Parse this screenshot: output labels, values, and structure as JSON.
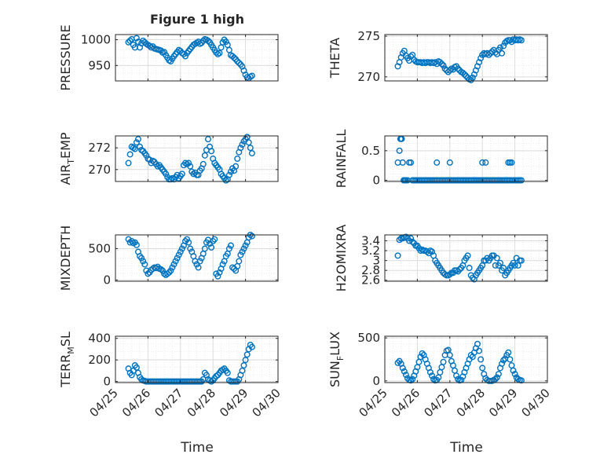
{
  "figure": {
    "title": "Figure 1 high",
    "xlabel": "Time"
  },
  "colors": {
    "marker": "#0072BD",
    "axis": "#262626",
    "grid": "#dcdcdc",
    "minor_grid": "#ebebeb"
  },
  "x_axis": {
    "ticks": [
      0,
      1,
      2,
      3,
      4,
      5
    ],
    "tick_labels": [
      "04/25",
      "04/26",
      "04/27",
      "04/28",
      "04/29",
      "04/30"
    ],
    "xlim": [
      0,
      5
    ],
    "units_note": "days starting 04/25"
  },
  "chart_data": [
    {
      "type": "scatter",
      "ylabel": "PRESSURE",
      "ylim": [
        920,
        1010
      ],
      "yticks": [
        950,
        1000
      ],
      "ytick_labels": [
        "950",
        "1000"
      ],
      "grid": true,
      "x": [
        0.4,
        0.45,
        0.5,
        0.55,
        0.6,
        0.65,
        0.7,
        0.75,
        0.8,
        0.85,
        0.9,
        0.95,
        1.0,
        1.05,
        1.1,
        1.15,
        1.2,
        1.25,
        1.3,
        1.35,
        1.4,
        1.45,
        1.5,
        1.55,
        1.6,
        1.65,
        1.7,
        1.75,
        1.8,
        1.85,
        1.9,
        1.95,
        2.0,
        2.05,
        2.1,
        2.15,
        2.2,
        2.25,
        2.3,
        2.35,
        2.4,
        2.45,
        2.5,
        2.55,
        2.6,
        2.65,
        2.7,
        2.75,
        2.8,
        2.85,
        2.9,
        2.95,
        3.0,
        3.05,
        3.1,
        3.15,
        3.2,
        3.25,
        3.3,
        3.35,
        3.4,
        3.45,
        3.5,
        3.55,
        3.6,
        3.65,
        3.7,
        3.75,
        3.8,
        3.85,
        3.9,
        3.95,
        4.0,
        4.05,
        4.1,
        4.15,
        4.2
      ],
      "y": [
        995,
        998,
        1001,
        990,
        985,
        1003,
        996,
        985,
        993,
        998,
        995,
        992,
        990,
        988,
        985,
        987,
        983,
        982,
        981,
        980,
        979,
        975,
        976,
        970,
        965,
        960,
        958,
        963,
        968,
        972,
        976,
        980,
        978,
        974,
        972,
        968,
        974,
        978,
        982,
        986,
        990,
        992,
        994,
        996,
        992,
        994,
        998,
        1001,
        1000,
        998,
        995,
        990,
        985,
        980,
        975,
        972,
        974,
        985,
        995,
        1000,
        996,
        990,
        980,
        970,
        968,
        965,
        962,
        958,
        955,
        952,
        948,
        940,
        932,
        927,
        925,
        928,
        930
      ]
    },
    {
      "type": "scatter",
      "ylabel": "THETA",
      "ylim": [
        269.5,
        275.2
      ],
      "yticks": [
        270,
        275
      ],
      "ytick_labels": [
        "270",
        "275"
      ],
      "grid": true,
      "x": [
        0.4,
        0.45,
        0.5,
        0.55,
        0.6,
        0.65,
        0.7,
        0.75,
        0.8,
        0.85,
        0.9,
        0.95,
        1.0,
        1.05,
        1.1,
        1.15,
        1.2,
        1.25,
        1.3,
        1.35,
        1.4,
        1.45,
        1.5,
        1.55,
        1.6,
        1.65,
        1.7,
        1.75,
        1.8,
        1.85,
        1.9,
        1.95,
        2.0,
        2.05,
        2.1,
        2.15,
        2.2,
        2.25,
        2.3,
        2.35,
        2.4,
        2.45,
        2.5,
        2.55,
        2.6,
        2.65,
        2.7,
        2.75,
        2.8,
        2.85,
        2.9,
        2.95,
        3.0,
        3.05,
        3.1,
        3.15,
        3.2,
        3.25,
        3.3,
        3.35,
        3.4,
        3.45,
        3.5,
        3.55,
        3.6,
        3.65,
        3.7,
        3.75,
        3.8,
        3.85,
        3.9,
        3.95,
        4.0,
        4.05,
        4.1,
        4.15,
        4.2
      ],
      "y": [
        271.3,
        271.8,
        272.4,
        272.9,
        273.2,
        272.6,
        272.3,
        272.0,
        272.5,
        272.7,
        272.1,
        271.9,
        271.8,
        271.8,
        271.8,
        271.7,
        271.8,
        271.7,
        271.8,
        271.8,
        271.7,
        271.8,
        271.7,
        271.8,
        271.6,
        271.9,
        271.8,
        271.6,
        271.4,
        271.0,
        270.8,
        270.6,
        270.8,
        271.0,
        270.9,
        271.2,
        271.3,
        271.0,
        270.8,
        270.6,
        270.5,
        270.3,
        270.1,
        269.9,
        269.7,
        269.6,
        269.9,
        270.3,
        270.8,
        271.3,
        271.8,
        272.3,
        272.7,
        272.9,
        272.8,
        272.9,
        272.7,
        272.9,
        273.1,
        273.3,
        273.0,
        272.8,
        273.3,
        273.6,
        272.9,
        273.8,
        274.2,
        274.4,
        274.5,
        274.5,
        274.3,
        274.6,
        274.5,
        274.6,
        274.5,
        274.6,
        274.5
      ]
    },
    {
      "type": "scatter",
      "ylabel": "AIR_TEMP",
      "ylim": [
        268.9,
        273.1
      ],
      "yticks": [
        270,
        272
      ],
      "ytick_labels": [
        "270",
        "272"
      ],
      "grid": true,
      "x": [
        0.4,
        0.45,
        0.5,
        0.55,
        0.6,
        0.65,
        0.7,
        0.75,
        0.8,
        0.85,
        0.9,
        0.95,
        1.0,
        1.05,
        1.1,
        1.15,
        1.2,
        1.25,
        1.3,
        1.35,
        1.4,
        1.45,
        1.5,
        1.55,
        1.6,
        1.65,
        1.7,
        1.75,
        1.8,
        1.85,
        1.9,
        1.95,
        2.0,
        2.05,
        2.1,
        2.15,
        2.2,
        2.25,
        2.3,
        2.35,
        2.4,
        2.45,
        2.5,
        2.55,
        2.6,
        2.65,
        2.7,
        2.75,
        2.8,
        2.85,
        2.9,
        2.95,
        3.0,
        3.05,
        3.1,
        3.15,
        3.2,
        3.25,
        3.3,
        3.35,
        3.4,
        3.45,
        3.5,
        3.55,
        3.6,
        3.65,
        3.7,
        3.75,
        3.8,
        3.85,
        3.9,
        3.95,
        4.0,
        4.05,
        4.1,
        4.15,
        4.2
      ],
      "y": [
        270.6,
        271.4,
        272.1,
        272.0,
        271.9,
        272.5,
        272.8,
        272.1,
        271.8,
        271.7,
        271.5,
        271.3,
        271.0,
        270.9,
        270.6,
        270.8,
        270.7,
        270.5,
        270.3,
        270.4,
        270.2,
        270.0,
        269.8,
        269.6,
        269.3,
        269.1,
        269.1,
        269.2,
        269.1,
        269.3,
        269.5,
        269.2,
        269.4,
        269.6,
        270.4,
        270.6,
        270.5,
        270.6,
        270.3,
        269.8,
        269.6,
        269.7,
        269.5,
        269.5,
        269.9,
        270.1,
        270.5,
        271.3,
        271.8,
        272.8,
        272.1,
        271.7,
        271.0,
        270.6,
        270.4,
        270.2,
        270.0,
        269.6,
        269.4,
        269.2,
        269.0,
        269.1,
        269.5,
        269.8,
        270.1,
        269.9,
        270.3,
        271.0,
        271.6,
        272.0,
        272.3,
        272.6,
        272.8,
        273.0,
        272.5,
        272.0,
        271.5
      ]
    },
    {
      "type": "scatter",
      "ylabel": "RAINFALL",
      "ylim": [
        -0.02,
        0.75
      ],
      "yticks": [
        0,
        0.5
      ],
      "ytick_labels": [
        "0",
        "0.5"
      ],
      "grid": true,
      "x": [
        0.4,
        0.45,
        0.48,
        0.5,
        0.52,
        0.55,
        0.58,
        0.6,
        0.62,
        0.65,
        0.7,
        0.75,
        0.8,
        0.85,
        0.9,
        0.95,
        1.0,
        1.05,
        1.1,
        1.15,
        1.2,
        1.25,
        1.3,
        1.35,
        1.4,
        1.45,
        1.5,
        1.55,
        1.6,
        1.65,
        1.7,
        1.75,
        1.8,
        1.85,
        1.9,
        1.95,
        2.0,
        2.05,
        2.1,
        2.15,
        2.2,
        2.25,
        2.3,
        2.35,
        2.4,
        2.45,
        2.5,
        2.55,
        2.6,
        2.65,
        2.7,
        2.75,
        2.8,
        2.85,
        2.9,
        2.95,
        3.0,
        3.05,
        3.1,
        3.15,
        3.2,
        3.25,
        3.3,
        3.35,
        3.4,
        3.45,
        3.5,
        3.55,
        3.6,
        3.65,
        3.7,
        3.75,
        3.8,
        3.85,
        3.9,
        3.95,
        4.0,
        4.05,
        4.1,
        4.15,
        4.2,
        1.6,
        2.0,
        3.0,
        3.1,
        3.8,
        3.85,
        3.9
      ],
      "y": [
        0.3,
        0.5,
        0.7,
        0.7,
        0.7,
        0.3,
        0.0,
        0.0,
        0.0,
        0.0,
        0.0,
        0.3,
        0.3,
        0.0,
        0.0,
        0.0,
        0.0,
        0.0,
        0.0,
        0.0,
        0.0,
        0.0,
        0.0,
        0.0,
        0.0,
        0.0,
        0.0,
        0.0,
        0.0,
        0.0,
        0.0,
        0.0,
        0.0,
        0.0,
        0.0,
        0.0,
        0.0,
        0.0,
        0.0,
        0.0,
        0.0,
        0.0,
        0.0,
        0.0,
        0.0,
        0.0,
        0.0,
        0.0,
        0.0,
        0.0,
        0.0,
        0.0,
        0.0,
        0.0,
        0.0,
        0.0,
        0.0,
        0.0,
        0.0,
        0.0,
        0.0,
        0.0,
        0.0,
        0.0,
        0.0,
        0.0,
        0.0,
        0.0,
        0.0,
        0.0,
        0.0,
        0.0,
        0.0,
        0.0,
        0.0,
        0.0,
        0.0,
        0.0,
        0.0,
        0.0,
        0.0,
        0.3,
        0.3,
        0.3,
        0.3,
        0.3,
        0.3,
        0.3
      ]
    },
    {
      "type": "scatter",
      "ylabel": "MIXDEPTH",
      "ylim": [
        -20,
        720
      ],
      "yticks": [
        0,
        500
      ],
      "ytick_labels": [
        "0",
        "500"
      ],
      "grid": true,
      "x": [
        0.4,
        0.45,
        0.5,
        0.55,
        0.6,
        0.65,
        0.7,
        0.75,
        0.8,
        0.85,
        0.9,
        0.95,
        1.0,
        1.05,
        1.1,
        1.15,
        1.2,
        1.25,
        1.3,
        1.35,
        1.4,
        1.45,
        1.5,
        1.55,
        1.6,
        1.65,
        1.7,
        1.75,
        1.8,
        1.85,
        1.9,
        1.95,
        2.0,
        2.05,
        2.1,
        2.15,
        2.2,
        2.25,
        2.3,
        2.35,
        2.4,
        2.45,
        2.5,
        2.55,
        2.6,
        2.65,
        2.7,
        2.75,
        2.8,
        2.85,
        2.9,
        2.95,
        3.0,
        3.05,
        3.1,
        3.15,
        3.2,
        3.25,
        3.3,
        3.35,
        3.4,
        3.45,
        3.5,
        3.55,
        3.6,
        3.65,
        3.7,
        3.75,
        3.8,
        3.85,
        3.9,
        3.95,
        4.0,
        4.05,
        4.1,
        4.15,
        4.2
      ],
      "y": [
        650,
        600,
        620,
        590,
        600,
        560,
        450,
        380,
        350,
        300,
        250,
        150,
        100,
        120,
        160,
        180,
        200,
        190,
        210,
        180,
        170,
        150,
        100,
        80,
        100,
        120,
        150,
        200,
        250,
        300,
        350,
        400,
        450,
        500,
        550,
        620,
        650,
        600,
        500,
        450,
        380,
        300,
        250,
        200,
        300,
        350,
        420,
        500,
        600,
        640,
        580,
        520,
        620,
        650,
        100,
        60,
        120,
        180,
        250,
        300,
        380,
        420,
        500,
        550,
        200,
        180,
        150,
        220,
        300,
        400,
        450,
        500,
        550,
        600,
        680,
        720,
        700
      ]
    },
    {
      "type": "scatter",
      "ylabel": "H2OMIXRA",
      "ylim": [
        2.58,
        3.52
      ],
      "yticks": [
        2.6,
        2.8,
        3.0,
        3.2,
        3.4
      ],
      "ytick_labels": [
        "2.6",
        "2.8",
        "3",
        "3.2",
        "3.4"
      ],
      "grid": true,
      "x": [
        0.4,
        0.45,
        0.5,
        0.55,
        0.6,
        0.65,
        0.7,
        0.75,
        0.8,
        0.85,
        0.9,
        0.95,
        1.0,
        1.05,
        1.1,
        1.15,
        1.2,
        1.25,
        1.3,
        1.35,
        1.4,
        1.45,
        1.5,
        1.55,
        1.6,
        1.65,
        1.7,
        1.75,
        1.8,
        1.85,
        1.9,
        1.95,
        2.0,
        2.05,
        2.1,
        2.15,
        2.2,
        2.25,
        2.3,
        2.35,
        2.4,
        2.45,
        2.5,
        2.55,
        2.6,
        2.65,
        2.7,
        2.75,
        2.8,
        2.85,
        2.9,
        2.95,
        3.0,
        3.05,
        3.1,
        3.15,
        3.2,
        3.25,
        3.3,
        3.35,
        3.4,
        3.45,
        3.5,
        3.55,
        3.6,
        3.65,
        3.7,
        3.75,
        3.8,
        3.85,
        3.9,
        3.95,
        4.0,
        4.05,
        4.1,
        4.15,
        4.2
      ],
      "y": [
        3.1,
        3.42,
        3.45,
        3.45,
        3.47,
        3.48,
        3.45,
        3.4,
        3.45,
        3.38,
        3.35,
        3.3,
        3.3,
        3.25,
        3.2,
        3.22,
        3.2,
        3.2,
        3.18,
        3.15,
        3.2,
        3.18,
        3.1,
        3.0,
        2.95,
        2.9,
        2.85,
        2.8,
        2.75,
        2.72,
        2.7,
        2.7,
        2.72,
        2.75,
        2.75,
        2.8,
        2.8,
        2.78,
        2.82,
        2.85,
        2.9,
        3.0,
        3.05,
        3.1,
        2.85,
        2.7,
        2.65,
        2.62,
        2.7,
        2.75,
        2.8,
        2.85,
        2.9,
        3.0,
        3.0,
        3.05,
        3.0,
        3.05,
        3.1,
        3.1,
        2.9,
        3.05,
        2.9,
        2.95,
        2.8,
        2.85,
        2.7,
        2.75,
        2.8,
        2.85,
        2.9,
        2.95,
        2.9,
        3.05,
        2.9,
        3.0,
        3.0
      ]
    },
    {
      "type": "scatter",
      "ylabel": "TERR_MSL",
      "ylim": [
        -10,
        420
      ],
      "yticks": [
        0,
        200,
        400
      ],
      "ytick_labels": [
        "0",
        "200",
        "400"
      ],
      "grid": true,
      "x": [
        0.4,
        0.45,
        0.5,
        0.55,
        0.6,
        0.65,
        0.7,
        0.75,
        0.8,
        0.85,
        0.9,
        0.95,
        1.0,
        1.05,
        1.1,
        1.15,
        1.2,
        1.25,
        1.3,
        1.35,
        1.4,
        1.45,
        1.5,
        1.55,
        1.6,
        1.65,
        1.7,
        1.75,
        1.8,
        1.85,
        1.9,
        1.95,
        2.0,
        2.05,
        2.1,
        2.15,
        2.2,
        2.25,
        2.3,
        2.35,
        2.4,
        2.45,
        2.5,
        2.55,
        2.6,
        2.65,
        2.7,
        2.75,
        2.8,
        2.85,
        2.9,
        2.95,
        3.0,
        3.05,
        3.1,
        3.15,
        3.2,
        3.25,
        3.3,
        3.35,
        3.4,
        3.45,
        3.5,
        3.55,
        3.6,
        3.65,
        3.7,
        3.75,
        3.8,
        3.85,
        3.9,
        3.95,
        4.0,
        4.05,
        4.1,
        4.15,
        4.2
      ],
      "y": [
        120,
        80,
        60,
        100,
        150,
        130,
        80,
        40,
        20,
        10,
        5,
        0,
        0,
        0,
        0,
        0,
        0,
        0,
        0,
        0,
        0,
        0,
        0,
        0,
        0,
        0,
        0,
        0,
        0,
        0,
        0,
        0,
        0,
        0,
        0,
        0,
        0,
        0,
        0,
        0,
        0,
        0,
        0,
        0,
        0,
        0,
        20,
        80,
        60,
        20,
        10,
        0,
        10,
        30,
        50,
        60,
        80,
        100,
        110,
        120,
        100,
        80,
        10,
        0,
        0,
        0,
        0,
        0,
        20,
        60,
        100,
        150,
        200,
        250,
        300,
        340,
        320
      ]
    },
    {
      "type": "scatter",
      "ylabel": "SUN_FLUX",
      "ylim": [
        -20,
        520
      ],
      "yticks": [
        0,
        500
      ],
      "ytick_labels": [
        "0",
        "500"
      ],
      "grid": true,
      "x": [
        0.4,
        0.45,
        0.5,
        0.55,
        0.6,
        0.65,
        0.7,
        0.75,
        0.8,
        0.85,
        0.9,
        0.95,
        1.0,
        1.05,
        1.1,
        1.15,
        1.2,
        1.25,
        1.3,
        1.35,
        1.4,
        1.45,
        1.5,
        1.55,
        1.6,
        1.65,
        1.7,
        1.75,
        1.8,
        1.85,
        1.9,
        1.95,
        2.0,
        2.05,
        2.1,
        2.15,
        2.2,
        2.25,
        2.3,
        2.35,
        2.4,
        2.45,
        2.5,
        2.55,
        2.6,
        2.65,
        2.7,
        2.75,
        2.8,
        2.85,
        2.9,
        2.95,
        3.0,
        3.05,
        3.1,
        3.15,
        3.2,
        3.25,
        3.3,
        3.35,
        3.4,
        3.45,
        3.5,
        3.55,
        3.6,
        3.65,
        3.7,
        3.75,
        3.8,
        3.85,
        3.9,
        3.95,
        4.0,
        4.05,
        4.1,
        4.15,
        4.2
      ],
      "y": [
        210,
        230,
        200,
        150,
        110,
        70,
        30,
        10,
        5,
        20,
        60,
        110,
        160,
        220,
        280,
        320,
        300,
        250,
        200,
        150,
        100,
        60,
        20,
        5,
        10,
        40,
        100,
        160,
        220,
        300,
        350,
        360,
        300,
        230,
        180,
        120,
        60,
        20,
        5,
        10,
        50,
        100,
        150,
        200,
        250,
        300,
        280,
        330,
        380,
        430,
        350,
        250,
        150,
        80,
        30,
        10,
        0,
        0,
        0,
        10,
        20,
        40,
        80,
        150,
        200,
        240,
        260,
        300,
        330,
        250,
        180,
        120,
        80,
        40,
        20,
        10,
        5
      ]
    }
  ]
}
